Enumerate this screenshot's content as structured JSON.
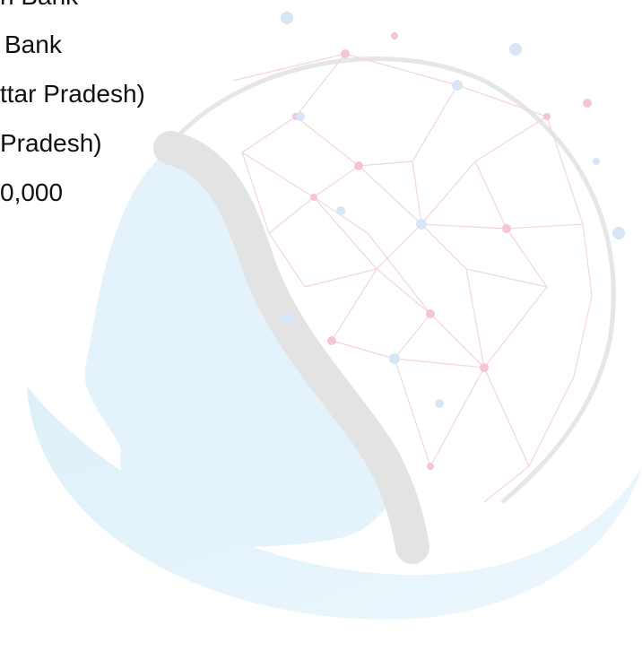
{
  "lines": [
    "n Bank",
    "Bank",
    "ttar Pradesh)",
    "Pradesh)",
    "0,000"
  ]
}
